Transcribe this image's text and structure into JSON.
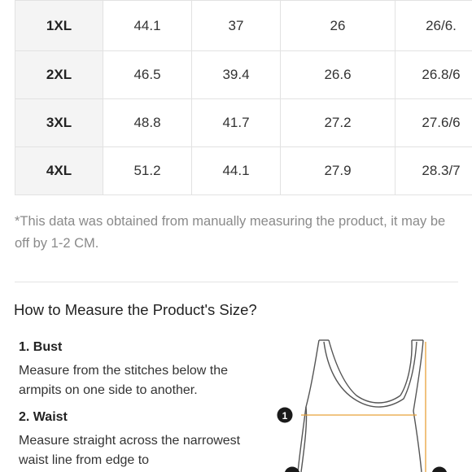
{
  "size_table": {
    "rows": [
      {
        "size": "1XL",
        "values": [
          "44.1",
          "37",
          "26",
          "26/6."
        ]
      },
      {
        "size": "2XL",
        "values": [
          "46.5",
          "39.4",
          "26.6",
          "26.8/6"
        ]
      },
      {
        "size": "3XL",
        "values": [
          "48.8",
          "41.7",
          "27.2",
          "27.6/6"
        ]
      },
      {
        "size": "4XL",
        "values": [
          "51.2",
          "44.1",
          "27.9",
          "28.3/7"
        ]
      }
    ]
  },
  "note": "*This data was obtained from manually measuring the product, it may be off by 1-2 CM.",
  "measure_section": {
    "title": "How to Measure the Product's Size?",
    "steps": [
      {
        "title": "1. Bust",
        "description": "Measure from the stitches below the armpits on one side to another."
      },
      {
        "title": "2. Waist",
        "description": "Measure straight across the narrowest waist line from edge to"
      }
    ],
    "diagram": {
      "markers": [
        "1"
      ],
      "line_color": "#e8a23a",
      "outline_color": "#555555"
    }
  }
}
